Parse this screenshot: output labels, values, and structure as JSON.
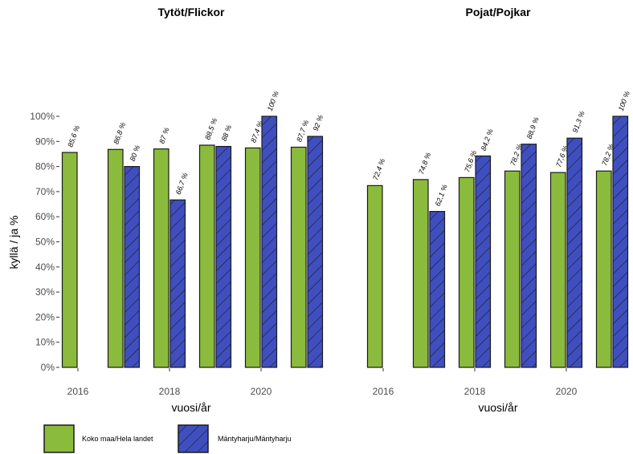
{
  "colors": {
    "national": "#8bbb3c",
    "local": "#3f4fbf",
    "stroke": "#1a1a1a",
    "axis_text": "#4d4d4d"
  },
  "chart_data": [
    {
      "type": "bar",
      "title": "Tytöt/Flickor",
      "xlabel": "vuosi/år",
      "ylabel": "kyllä / ja %",
      "ylim": [
        0,
        100
      ],
      "yticks": [
        "0%",
        "10%",
        "20%",
        "30%",
        "40%",
        "50%",
        "60%",
        "70%",
        "80%",
        "90%",
        "100%"
      ],
      "xticks": [
        "2016",
        "2018",
        "2020"
      ],
      "categories": [
        2016,
        2017,
        2018,
        2019,
        2020,
        2021
      ],
      "series": [
        {
          "name": "Koko maa/Hela landet",
          "values": [
            85.6,
            86.8,
            87,
            88.5,
            87.4,
            87.7
          ],
          "labels": [
            "85,6 %",
            "86,8 %",
            "87 %",
            "88,5 %",
            "87,4 %",
            "87,7 %"
          ]
        },
        {
          "name": "Mäntyharju/Mäntyharju",
          "values": [
            null,
            80,
            66.7,
            88,
            100,
            92
          ],
          "labels": [
            null,
            "80 %",
            "66,7 %",
            "88 %",
            "100 %",
            "92 %"
          ]
        }
      ]
    },
    {
      "type": "bar",
      "title": "Pojat/Pojkar",
      "xlabel": "vuosi/år",
      "ylabel": "",
      "ylim": [
        0,
        100
      ],
      "xticks": [
        "2016",
        "2018",
        "2020"
      ],
      "categories": [
        2016,
        2017,
        2018,
        2019,
        2020,
        2021
      ],
      "series": [
        {
          "name": "Koko maa/Hela landet",
          "values": [
            72.4,
            74.8,
            75.6,
            78.2,
            77.6,
            78.2
          ],
          "labels": [
            "72,4 %",
            "74,8 %",
            "75,6 %",
            "78,2 %",
            "77,6 %",
            "78,2 %"
          ]
        },
        {
          "name": "Mäntyharju/Mäntyharju",
          "values": [
            null,
            62.1,
            84.2,
            88.9,
            91.3,
            100
          ],
          "labels": [
            null,
            "62,1 %",
            "84,2 %",
            "88,9 %",
            "91,3 %",
            "100 %"
          ]
        }
      ]
    }
  ],
  "legend": {
    "position": "bottom-left",
    "items": [
      "Koko maa/Hela landet",
      "Mäntyharju/Mäntyharju"
    ]
  }
}
